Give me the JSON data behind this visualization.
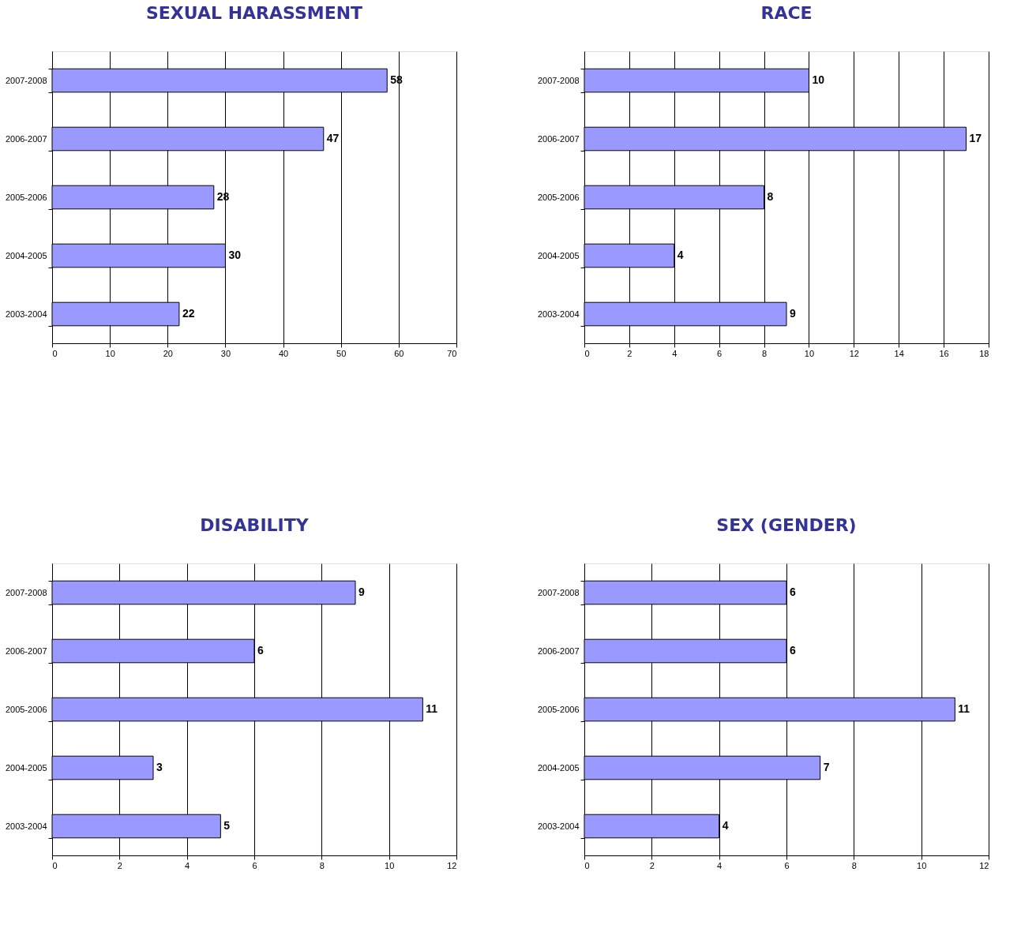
{
  "chart_data": [
    {
      "type": "bar",
      "orientation": "horizontal",
      "title": "SEXUAL HARASSMENT",
      "categories": [
        "2007-2008",
        "2006-2007",
        "2005-2006",
        "2004-2005",
        "2003-2004"
      ],
      "values": [
        58,
        47,
        28,
        30,
        22
      ],
      "color": "#9999ff",
      "xlim": [
        0,
        70
      ],
      "xticks": [
        0,
        10,
        20,
        30,
        40,
        50,
        60,
        70
      ],
      "grid": "x",
      "data_labels": true
    },
    {
      "type": "bar",
      "orientation": "horizontal",
      "title": "RACE",
      "categories": [
        "2007-2008",
        "2006-2007",
        "2005-2006",
        "2004-2005",
        "2003-2004"
      ],
      "values": [
        10,
        17,
        8,
        4,
        9
      ],
      "color": "#9999ff",
      "xlim": [
        0,
        18
      ],
      "xticks": [
        0,
        2,
        4,
        6,
        8,
        10,
        12,
        14,
        16,
        18
      ],
      "grid": "x",
      "data_labels": true
    },
    {
      "type": "bar",
      "orientation": "horizontal",
      "title": "DISABILITY",
      "categories": [
        "2007-2008",
        "2006-2007",
        "2005-2006",
        "2004-2005",
        "2003-2004"
      ],
      "values": [
        9,
        6,
        11,
        3,
        5
      ],
      "color": "#9999ff",
      "xlim": [
        0,
        12
      ],
      "xticks": [
        0,
        2,
        4,
        6,
        8,
        10,
        12
      ],
      "grid": "x",
      "data_labels": true
    },
    {
      "type": "bar",
      "orientation": "horizontal",
      "title": "SEX (GENDER)",
      "categories": [
        "2007-2008",
        "2006-2007",
        "2005-2006",
        "2004-2005",
        "2003-2004"
      ],
      "values": [
        6,
        6,
        11,
        7,
        4
      ],
      "color": "#9999ff",
      "xlim": [
        0,
        12
      ],
      "xticks": [
        0,
        2,
        4,
        6,
        8,
        10,
        12
      ],
      "grid": "x",
      "data_labels": true
    }
  ]
}
